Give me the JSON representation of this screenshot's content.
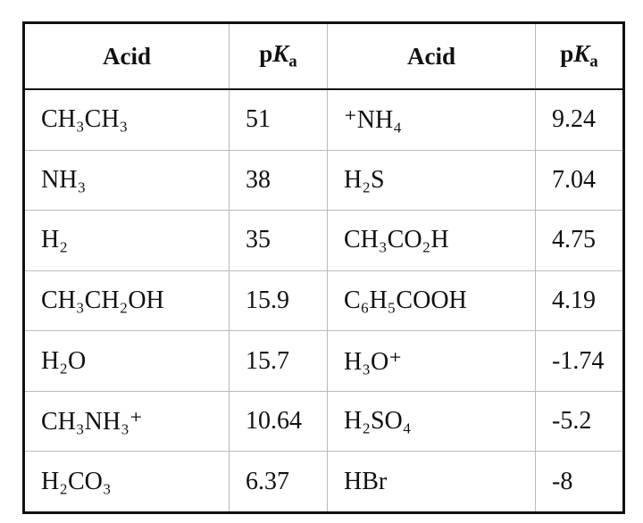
{
  "table": {
    "headers": [
      "Acid",
      [
        "p",
        "K",
        "a"
      ],
      "Acid",
      [
        "p",
        "K",
        "a"
      ]
    ],
    "rows": [
      [
        "CH₃CH₃",
        "51",
        "⁺NH₄",
        "9.24"
      ],
      [
        "NH₃",
        "38",
        "H₂S",
        "7.04"
      ],
      [
        "H₂",
        "35",
        "CH₃CO₂H",
        "4.75"
      ],
      [
        "CH₃CH₂OH",
        "15.9",
        "C₆H₅COOH",
        "4.19"
      ],
      [
        "H₂O",
        "15.7",
        "H₃O⁺",
        "-1.74"
      ],
      [
        "CH₃NH₃⁺",
        "10.64",
        "H₂SO₄",
        "-5.2"
      ],
      [
        "H₂CO₃",
        "6.37",
        "HBr",
        "-8"
      ]
    ]
  }
}
